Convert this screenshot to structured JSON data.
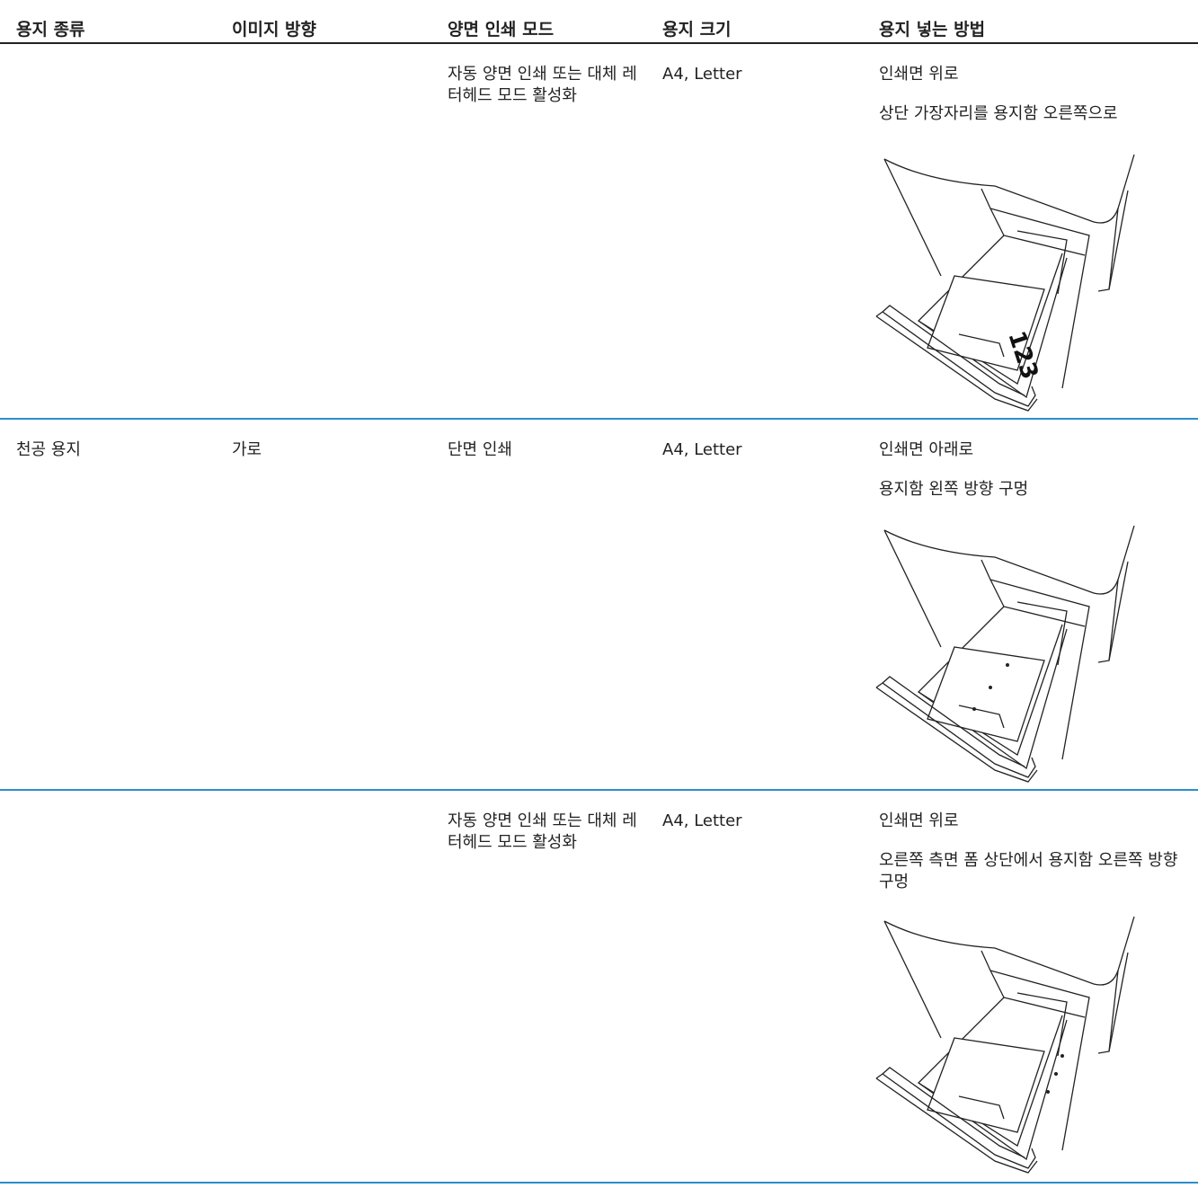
{
  "table": {
    "header": [
      "용지 종류",
      "이미지 방향",
      "양면 인쇄 모드",
      "용지 크기",
      "용지 넣는 방법"
    ],
    "rows": [
      {
        "duplex_mode": "자동 양면 인쇄 또는 대체 레터헤드 모드 활성화",
        "paper_size": "A4, Letter",
        "loading": [
          "인쇄면 위로",
          "상단 가장자리를 용지함 오른쪽으로"
        ],
        "illustration_label": "123"
      },
      {
        "paper_type": "천공 용지",
        "orientation": "가로",
        "duplex_mode": "단면 인쇄",
        "paper_size": "A4, Letter",
        "loading": [
          "인쇄면 아래로",
          "용지함 왼쪽 방향 구멍"
        ]
      },
      {
        "duplex_mode": "자동 양면 인쇄 또는 대체 레터헤드 모드 활성화",
        "paper_size": "A4, Letter",
        "loading": [
          "인쇄면 위로",
          "오른쪽 측면 폼 상단에서 용지함 오른쪽 방향 구멍"
        ]
      }
    ]
  }
}
